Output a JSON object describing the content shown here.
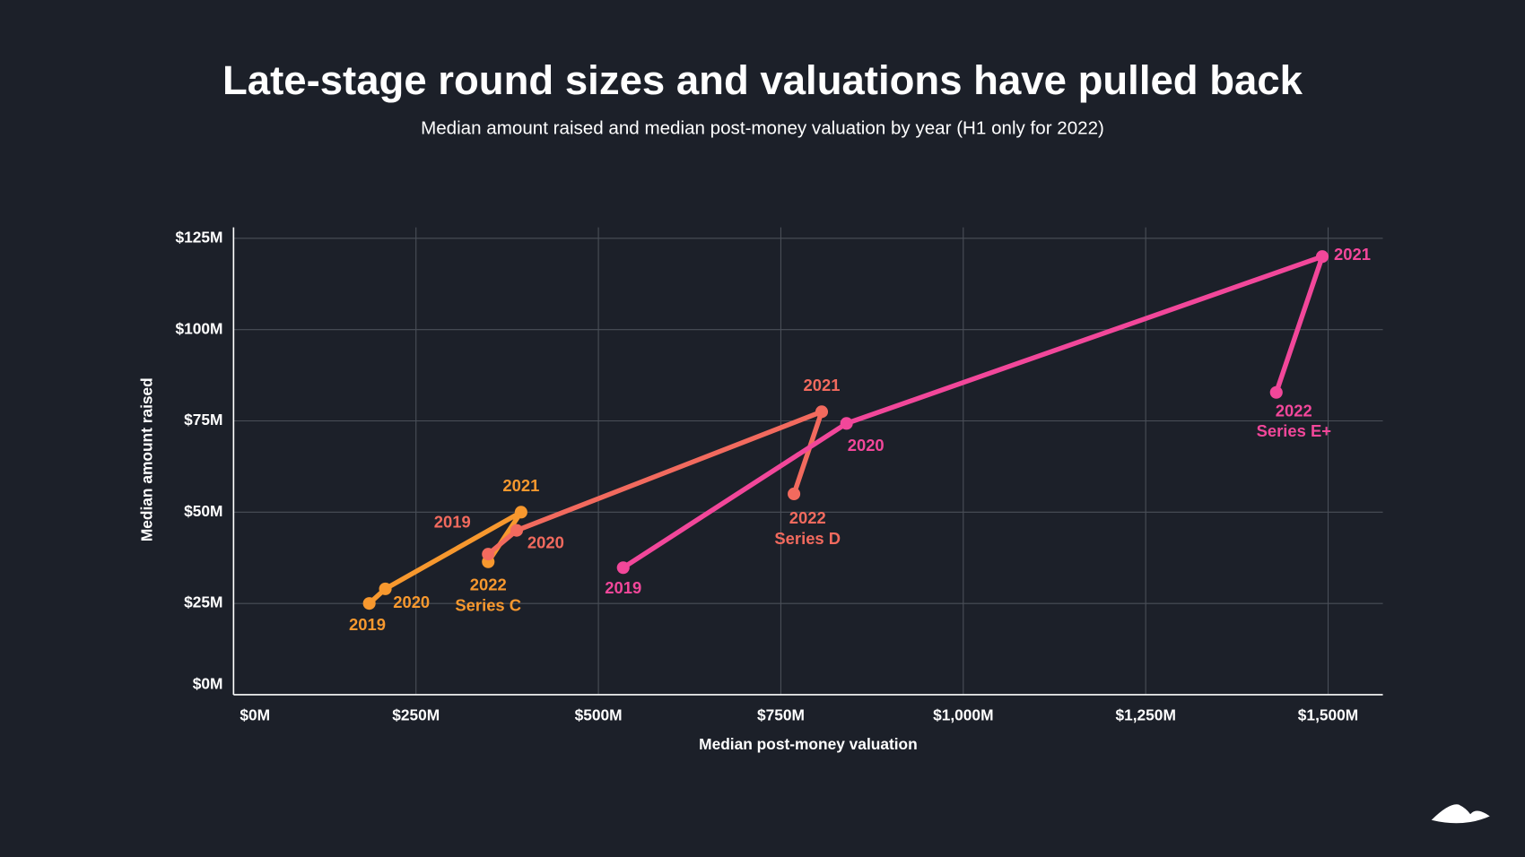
{
  "chart_data": {
    "type": "line",
    "title": "Late-stage round sizes and valuations have pulled back",
    "subtitle": "Median amount raised and median post-money valuation by year (H1 only for 2022)",
    "x_label": "Median post-money valuation",
    "y_label": "Median amount raised",
    "xlim": [
      0,
      1575
    ],
    "ylim": [
      0,
      128
    ],
    "xticks": [
      {
        "value": 0,
        "label": "$0M"
      },
      {
        "value": 250,
        "label": "$250M"
      },
      {
        "value": 500,
        "label": "$500M"
      },
      {
        "value": 750,
        "label": "$750M"
      },
      {
        "value": 1000,
        "label": "$1,000M"
      },
      {
        "value": 1250,
        "label": "$1,250M"
      },
      {
        "value": 1500,
        "label": "$1,500M"
      }
    ],
    "yticks": [
      {
        "value": 0,
        "label": "$0M"
      },
      {
        "value": 25,
        "label": "$25M"
      },
      {
        "value": 50,
        "label": "$50M"
      },
      {
        "value": 75,
        "label": "$75M"
      },
      {
        "value": 100,
        "label": "$100M"
      },
      {
        "value": 125,
        "label": "$125M"
      }
    ],
    "grid": true,
    "series": [
      {
        "name": "Series C",
        "color": "#f7982e",
        "x": [
          186,
          208,
          394,
          349
        ],
        "values": [
          25,
          29,
          50,
          36.4
        ],
        "point_labels": [
          "2019",
          "2020",
          "2021",
          "2022"
        ]
      },
      {
        "name": "Series D",
        "color": "#f26a5e",
        "x": [
          349,
          388,
          806,
          768
        ],
        "values": [
          38.5,
          45,
          77.5,
          55
        ],
        "point_labels": [
          "2019",
          "2020",
          "2021",
          "2022"
        ]
      },
      {
        "name": "Series E+",
        "color": "#f2479a",
        "x": [
          534,
          840,
          1492,
          1429
        ],
        "values": [
          34.8,
          74.3,
          120,
          82.8
        ],
        "point_labels": [
          "2019",
          "2020",
          "2021",
          "2022"
        ]
      }
    ]
  }
}
